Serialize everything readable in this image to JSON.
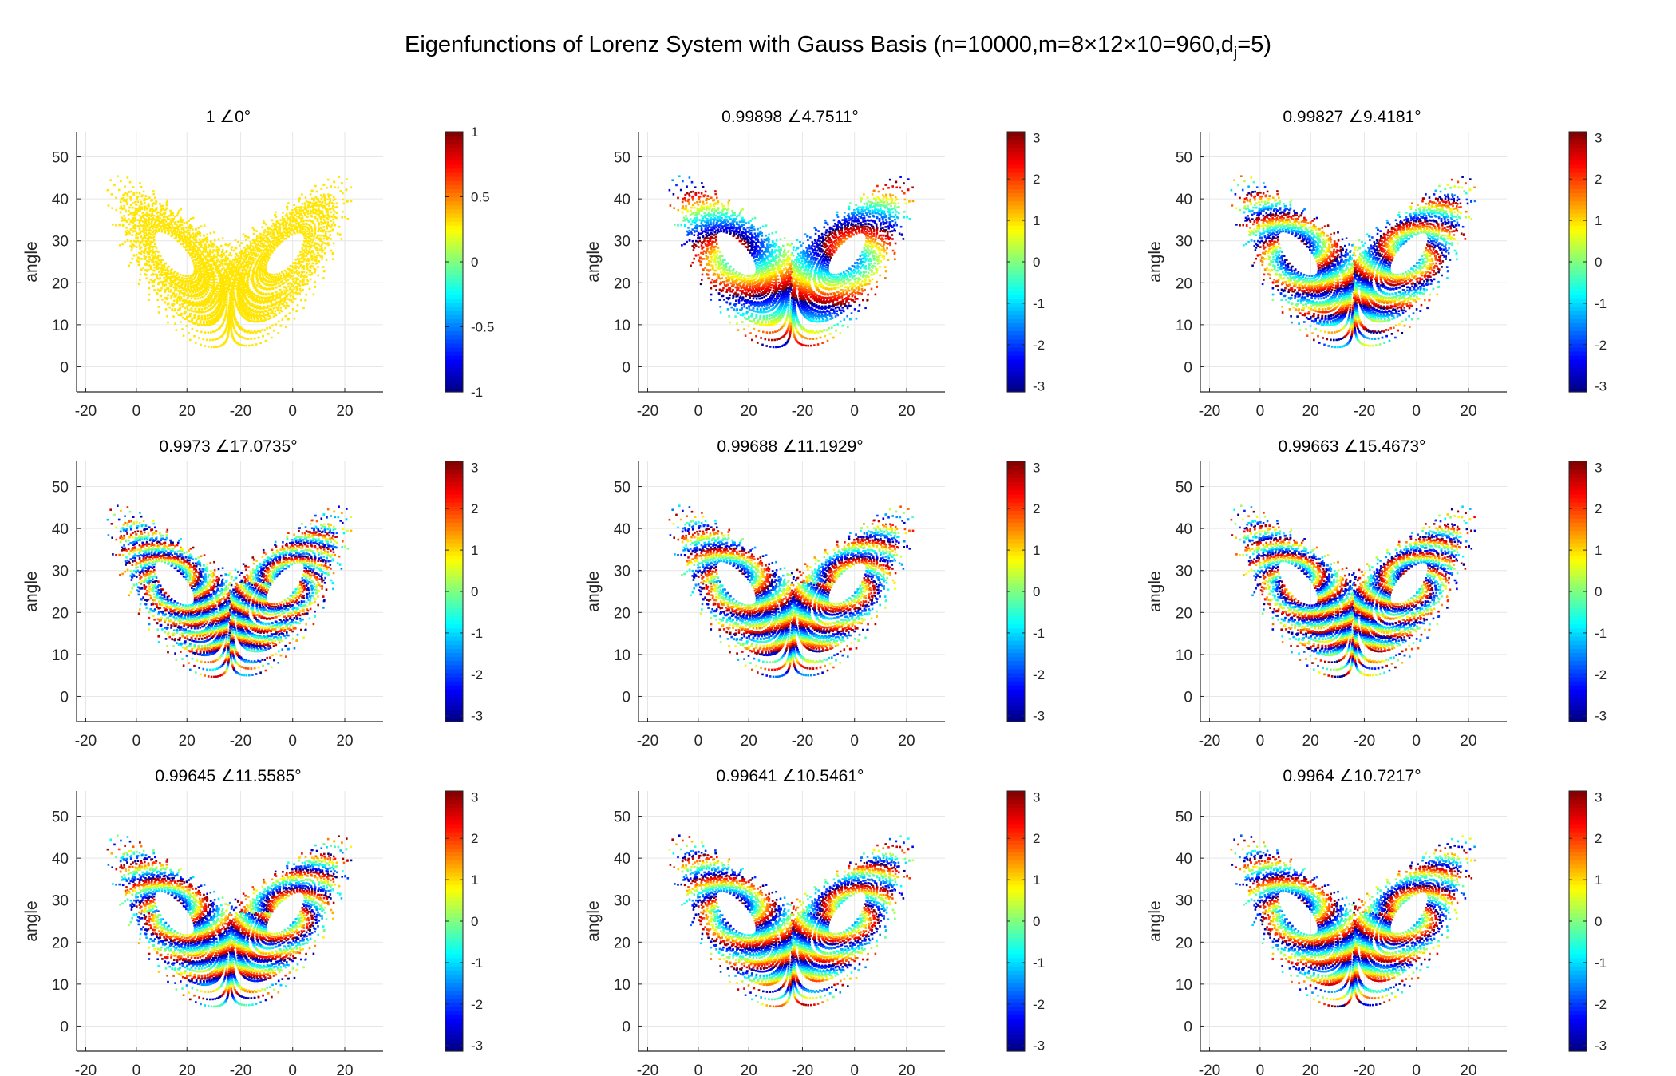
{
  "title": {
    "pre": "Eigenfunctions of Lorenz System with Gauss Basis (n=10000,m=8×12×10=960,d",
    "sub": "j",
    "post": "=5)"
  },
  "chart_data": [
    {
      "type": "scatter",
      "title": "1 ∠0°",
      "ylabel": "angle",
      "x_tick_labels": [
        "-20",
        "0",
        "20",
        "-20",
        "0",
        "20"
      ],
      "y_ticks": [
        0,
        10,
        20,
        30,
        40,
        50
      ],
      "ylim": [
        -6,
        56
      ],
      "grid": true,
      "colorbar": {
        "colormap": "jet",
        "range": [
          -1,
          1
        ],
        "ticks": [
          "1",
          "0.5",
          "0",
          "-0.5",
          "-1"
        ]
      },
      "phase_twist": 0,
      "constant_value": 0.3
    },
    {
      "type": "scatter",
      "title": "0.99898 ∠4.7511°",
      "ylabel": "angle",
      "x_tick_labels": [
        "-20",
        "0",
        "20",
        "-20",
        "0",
        "20"
      ],
      "y_ticks": [
        0,
        10,
        20,
        30,
        40,
        50
      ],
      "ylim": [
        -6,
        56
      ],
      "grid": true,
      "colorbar": {
        "colormap": "jet",
        "range": [
          -3.14,
          3.14
        ],
        "ticks": [
          "3",
          "2",
          "1",
          "0",
          "-1",
          "-2",
          "-3"
        ]
      },
      "phase_twist": 1
    },
    {
      "type": "scatter",
      "title": "0.99827 ∠9.4181°",
      "ylabel": "angle",
      "x_tick_labels": [
        "-20",
        "0",
        "20",
        "-20",
        "0",
        "20"
      ],
      "y_ticks": [
        0,
        10,
        20,
        30,
        40,
        50
      ],
      "ylim": [
        -6,
        56
      ],
      "grid": true,
      "colorbar": {
        "colormap": "jet",
        "range": [
          -3.14,
          3.14
        ],
        "ticks": [
          "3",
          "2",
          "1",
          "0",
          "-1",
          "-2",
          "-3"
        ]
      },
      "phase_twist": 2
    },
    {
      "type": "scatter",
      "title": "0.9973 ∠17.0735°",
      "ylabel": "angle",
      "x_tick_labels": [
        "-20",
        "0",
        "20",
        "-20",
        "0",
        "20"
      ],
      "y_ticks": [
        0,
        10,
        20,
        30,
        40,
        50
      ],
      "ylim": [
        -6,
        56
      ],
      "grid": true,
      "colorbar": {
        "colormap": "jet",
        "range": [
          -3.14,
          3.14
        ],
        "ticks": [
          "3",
          "2",
          "1",
          "0",
          "-1",
          "-2",
          "-3"
        ]
      },
      "phase_twist": 3.6
    },
    {
      "type": "scatter",
      "title": "0.99688 ∠11.1929°",
      "ylabel": "angle",
      "x_tick_labels": [
        "-20",
        "0",
        "20",
        "-20",
        "0",
        "20"
      ],
      "y_ticks": [
        0,
        10,
        20,
        30,
        40,
        50
      ],
      "ylim": [
        -6,
        56
      ],
      "grid": true,
      "colorbar": {
        "colormap": "jet",
        "range": [
          -3.14,
          3.14
        ],
        "ticks": [
          "3",
          "2",
          "1",
          "0",
          "-1",
          "-2",
          "-3"
        ]
      },
      "phase_twist": 2.4
    },
    {
      "type": "scatter",
      "title": "0.99663 ∠15.4673°",
      "ylabel": "angle",
      "x_tick_labels": [
        "-20",
        "0",
        "20",
        "-20",
        "0",
        "20"
      ],
      "y_ticks": [
        0,
        10,
        20,
        30,
        40,
        50
      ],
      "ylim": [
        -6,
        56
      ],
      "grid": true,
      "colorbar": {
        "colormap": "jet",
        "range": [
          -3.14,
          3.14
        ],
        "ticks": [
          "3",
          "2",
          "1",
          "0",
          "-1",
          "-2",
          "-3"
        ]
      },
      "phase_twist": 3.2
    },
    {
      "type": "scatter",
      "title": "0.99645 ∠11.5585°",
      "ylabel": "angle",
      "x_tick_labels": [
        "-20",
        "0",
        "20",
        "-20",
        "0",
        "20"
      ],
      "y_ticks": [
        0,
        10,
        20,
        30,
        40,
        50
      ],
      "ylim": [
        -6,
        56
      ],
      "grid": true,
      "colorbar": {
        "colormap": "jet",
        "range": [
          -3.14,
          3.14
        ],
        "ticks": [
          "3",
          "2",
          "1",
          "0",
          "-1",
          "-2",
          "-3"
        ]
      },
      "phase_twist": 2.5
    },
    {
      "type": "scatter",
      "title": "0.99641 ∠10.5461°",
      "ylabel": "angle",
      "x_tick_labels": [
        "-20",
        "0",
        "20",
        "-20",
        "0",
        "20"
      ],
      "y_ticks": [
        0,
        10,
        20,
        30,
        40,
        50
      ],
      "ylim": [
        -6,
        56
      ],
      "grid": true,
      "colorbar": {
        "colormap": "jet",
        "range": [
          -3.14,
          3.14
        ],
        "ticks": [
          "3",
          "2",
          "1",
          "0",
          "-1",
          "-2",
          "-3"
        ]
      },
      "phase_twist": 2.2
    },
    {
      "type": "scatter",
      "title": "0.9964 ∠10.7217°",
      "ylabel": "angle",
      "x_tick_labels": [
        "-20",
        "0",
        "20",
        "-20",
        "0",
        "20"
      ],
      "y_ticks": [
        0,
        10,
        20,
        30,
        40,
        50
      ],
      "ylim": [
        -6,
        56
      ],
      "grid": true,
      "colorbar": {
        "colormap": "jet",
        "range": [
          -3.14,
          3.14
        ],
        "ticks": [
          "3",
          "2",
          "1",
          "0",
          "-1",
          "-2",
          "-3"
        ]
      },
      "phase_twist": 2.3
    }
  ]
}
